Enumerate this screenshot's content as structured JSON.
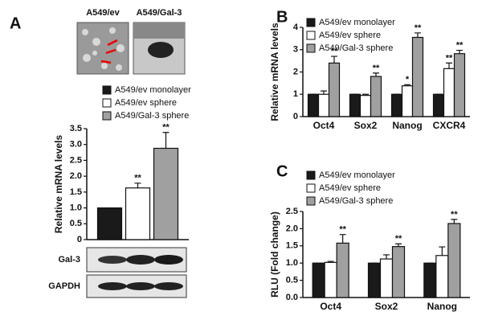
{
  "panel_labels": [
    "A",
    "B",
    "C"
  ],
  "image_labels": [
    "A549/ev",
    "A549/Gal-3"
  ],
  "blot_labels": [
    "Gal-3",
    "GAPDH"
  ],
  "chart_data": [
    {
      "type": "bar",
      "y_label": "Relative mRNA levels",
      "categories": [
        null
      ],
      "ylim": [
        0,
        3.5
      ],
      "yticks": [
        0,
        0.5,
        {
          "value": 1,
          "label": "1.0"
        },
        1.5,
        {
          "value": 2,
          "label": "2.0"
        },
        2.5,
        {
          "value": 3,
          "label": "3.0"
        },
        3.5
      ],
      "series": [
        {
          "name": "A549/ev monolayer",
          "color": "#1a1a1a",
          "values": [
            1.0
          ],
          "errors": [
            0.0
          ],
          "significance": [
            null
          ]
        },
        {
          "name": "A549/ev sphere",
          "color": "#ffffff",
          "values": [
            1.63
          ],
          "errors": [
            0.15
          ],
          "significance": [
            "**"
          ]
        },
        {
          "name": "A549/Gal-3 sphere",
          "color": "#a0a0a0",
          "values": [
            2.88
          ],
          "errors": [
            0.5
          ],
          "significance": [
            "**"
          ]
        }
      ]
    },
    {
      "type": "bar",
      "y_label": "Relative mRNA levels",
      "categories": [
        "Oct4",
        "Sox2",
        "Nanog",
        "CXCR4"
      ],
      "ylim": [
        0,
        4
      ],
      "yticks": [
        0,
        1,
        2,
        3,
        4
      ],
      "series": [
        {
          "name": "A549/ev monolayer",
          "color": "#1a1a1a",
          "values": [
            1,
            1,
            1,
            1
          ],
          "errors": [
            0,
            0,
            0,
            0
          ],
          "significance": [
            null,
            null,
            null,
            null
          ]
        },
        {
          "name": "A549/ev sphere",
          "color": "#ffffff",
          "values": [
            1.0,
            0.95,
            1.38,
            2.15
          ],
          "errors": [
            0.15,
            0.05,
            0.05,
            0.25
          ],
          "significance": [
            null,
            null,
            "*",
            "**"
          ]
        },
        {
          "name": "A549/Gal-3 sphere",
          "color": "#a0a0a0",
          "values": [
            2.4,
            1.8,
            3.55,
            2.82
          ],
          "errors": [
            0.3,
            0.15,
            0.2,
            0.15
          ],
          "significance": [
            "**",
            "**",
            "**",
            "**"
          ]
        }
      ]
    },
    {
      "type": "bar",
      "y_label": "RLU (Fold change)",
      "categories": [
        "Oct4",
        "Sox2",
        "Nanog"
      ],
      "ylim": [
        0,
        2.5
      ],
      "yticks": [
        {
          "value": 0,
          "label": "0.0"
        },
        0.5,
        {
          "value": 1,
          "label": "1.0"
        },
        1.5,
        {
          "value": 2,
          "label": "2.0"
        },
        2.5
      ],
      "series": [
        {
          "name": "A549/ev monolayer",
          "color": "#1a1a1a",
          "values": [
            1,
            1,
            1
          ],
          "errors": [
            0,
            0,
            0
          ],
          "significance": [
            null,
            null,
            null
          ]
        },
        {
          "name": "A549/ev sphere",
          "color": "#ffffff",
          "values": [
            1.02,
            1.12,
            1.22
          ],
          "errors": [
            0.03,
            0.12,
            0.25
          ],
          "significance": [
            null,
            null,
            null
          ]
        },
        {
          "name": "A549/Gal-3 sphere",
          "color": "#a0a0a0",
          "values": [
            1.58,
            1.48,
            2.15
          ],
          "errors": [
            0.25,
            0.08,
            0.12
          ],
          "significance": [
            "**",
            "**",
            "**"
          ]
        }
      ]
    }
  ]
}
